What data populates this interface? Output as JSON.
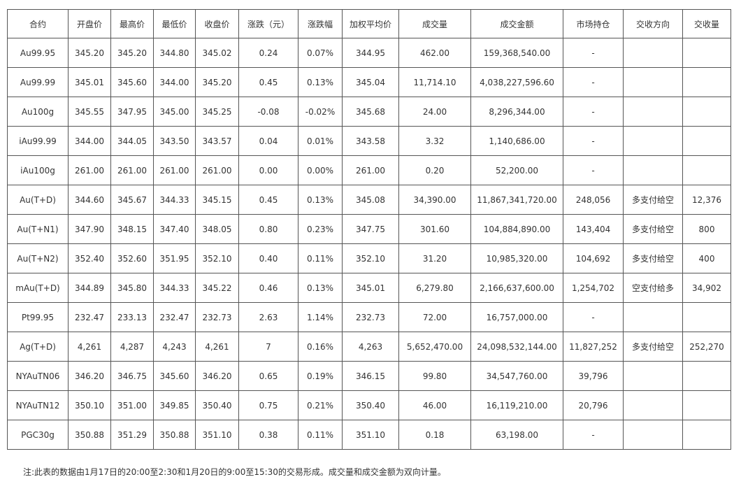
{
  "table": {
    "headers": [
      "合约",
      "开盘价",
      "最高价",
      "最低价",
      "收盘价",
      "涨跌（元）",
      "涨跌幅",
      "加权平均价",
      "成交量",
      "成交金额",
      "市场持仓",
      "交收方向",
      "交收量"
    ],
    "rows": [
      [
        "Au99.95",
        "345.20",
        "345.20",
        "344.80",
        "345.02",
        "0.24",
        "0.07%",
        "344.95",
        "462.00",
        "159,368,540.00",
        "-",
        "",
        ""
      ],
      [
        "Au99.99",
        "345.01",
        "345.60",
        "344.00",
        "345.20",
        "0.45",
        "0.13%",
        "345.04",
        "11,714.10",
        "4,038,227,596.60",
        "-",
        "",
        ""
      ],
      [
        "Au100g",
        "345.55",
        "347.95",
        "345.00",
        "345.25",
        "-0.08",
        "-0.02%",
        "345.68",
        "24.00",
        "8,296,344.00",
        "-",
        "",
        ""
      ],
      [
        "iAu99.99",
        "344.00",
        "344.05",
        "343.50",
        "343.57",
        "0.04",
        "0.01%",
        "343.58",
        "3.32",
        "1,140,686.00",
        "-",
        "",
        ""
      ],
      [
        "iAu100g",
        "261.00",
        "261.00",
        "261.00",
        "261.00",
        "0.00",
        "0.00%",
        "261.00",
        "0.20",
        "52,200.00",
        "-",
        "",
        ""
      ],
      [
        "Au(T+D)",
        "344.60",
        "345.67",
        "344.33",
        "345.15",
        "0.45",
        "0.13%",
        "345.08",
        "34,390.00",
        "11,867,341,720.00",
        "248,056",
        "多支付给空",
        "12,376"
      ],
      [
        "Au(T+N1)",
        "347.90",
        "348.15",
        "347.40",
        "348.05",
        "0.80",
        "0.23%",
        "347.75",
        "301.60",
        "104,884,890.00",
        "143,404",
        "多支付给空",
        "800"
      ],
      [
        "Au(T+N2)",
        "352.40",
        "352.60",
        "351.95",
        "352.10",
        "0.40",
        "0.11%",
        "352.10",
        "31.20",
        "10,985,320.00",
        "104,692",
        "多支付给空",
        "400"
      ],
      [
        "mAu(T+D)",
        "344.89",
        "345.80",
        "344.33",
        "345.22",
        "0.46",
        "0.13%",
        "345.01",
        "6,279.80",
        "2,166,637,600.00",
        "1,254,702",
        "空支付给多",
        "34,902"
      ],
      [
        "Pt99.95",
        "232.47",
        "233.13",
        "232.47",
        "232.73",
        "2.63",
        "1.14%",
        "232.73",
        "72.00",
        "16,757,000.00",
        "-",
        "",
        ""
      ],
      [
        "Ag(T+D)",
        "4,261",
        "4,287",
        "4,243",
        "4,261",
        "7",
        "0.16%",
        "4,263",
        "5,652,470.00",
        "24,098,532,144.00",
        "11,827,252",
        "多支付给空",
        "252,270"
      ],
      [
        "NYAuTN06",
        "346.20",
        "346.75",
        "345.60",
        "346.20",
        "0.65",
        "0.19%",
        "346.15",
        "99.80",
        "34,547,760.00",
        "39,796",
        "",
        ""
      ],
      [
        "NYAuTN12",
        "350.10",
        "351.00",
        "349.85",
        "350.40",
        "0.75",
        "0.21%",
        "350.40",
        "46.00",
        "16,119,210.00",
        "20,796",
        "",
        ""
      ],
      [
        "PGC30g",
        "350.88",
        "351.29",
        "350.88",
        "351.10",
        "0.38",
        "0.11%",
        "351.10",
        "0.18",
        "63,198.00",
        "-",
        "",
        ""
      ]
    ]
  },
  "footnote": "注:此表的数据由1月17日的20:00至2:30和1月20日的9:00至15:30的交易形成。成交量和成交金额为双向计量。"
}
